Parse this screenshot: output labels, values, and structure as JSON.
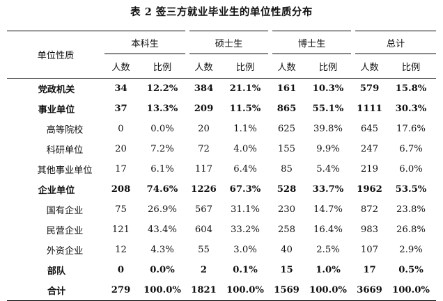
{
  "caption": "表 2 签三方就业毕业生的单位性质分布",
  "header": {
    "type_label": "单位性质",
    "groups": [
      "本科生",
      "硕士生",
      "博士生",
      "总计"
    ],
    "count_label": "人数",
    "ratio_label": "比例"
  },
  "rows": [
    {
      "name": "党政机关",
      "level": "main",
      "cells": [
        "34",
        "12.2%",
        "384",
        "21.1%",
        "161",
        "10.3%",
        "579",
        "15.8%"
      ]
    },
    {
      "name": "事业单位",
      "level": "main",
      "cells": [
        "37",
        "13.3%",
        "209",
        "11.5%",
        "865",
        "55.1%",
        "1111",
        "30.3%"
      ]
    },
    {
      "name": "高等院校",
      "level": "sub",
      "cells": [
        "0",
        "0.0%",
        "20",
        "1.1%",
        "625",
        "39.8%",
        "645",
        "17.6%"
      ]
    },
    {
      "name": "科研单位",
      "level": "sub",
      "cells": [
        "20",
        "7.2%",
        "72",
        "4.0%",
        "155",
        "9.9%",
        "247",
        "6.7%"
      ]
    },
    {
      "name": "其他事业单位",
      "level": "sub",
      "cells": [
        "17",
        "6.1%",
        "117",
        "6.4%",
        "85",
        "5.4%",
        "219",
        "6.0%"
      ]
    },
    {
      "name": "企业单位",
      "level": "main",
      "cells": [
        "208",
        "74.6%",
        "1226",
        "67.3%",
        "528",
        "33.7%",
        "1962",
        "53.5%"
      ]
    },
    {
      "name": "国有企业",
      "level": "sub",
      "cells": [
        "75",
        "26.9%",
        "567",
        "31.1%",
        "230",
        "14.7%",
        "872",
        "23.8%"
      ]
    },
    {
      "name": "民营企业",
      "level": "sub",
      "cells": [
        "121",
        "43.4%",
        "604",
        "33.2%",
        "258",
        "16.4%",
        "983",
        "26.8%"
      ]
    },
    {
      "name": "外资企业",
      "level": "sub",
      "cells": [
        "12",
        "4.3%",
        "55",
        "3.0%",
        "40",
        "2.5%",
        "107",
        "2.9%"
      ]
    },
    {
      "name": "部队",
      "level": "main",
      "cells": [
        "0",
        "0.0%",
        "2",
        "0.1%",
        "15",
        "1.0%",
        "17",
        "0.5%"
      ]
    },
    {
      "name": "合计",
      "level": "total",
      "cells": [
        "279",
        "100.0%",
        "1821",
        "100.0%",
        "1569",
        "100.0%",
        "3669",
        "100.0%"
      ]
    }
  ]
}
